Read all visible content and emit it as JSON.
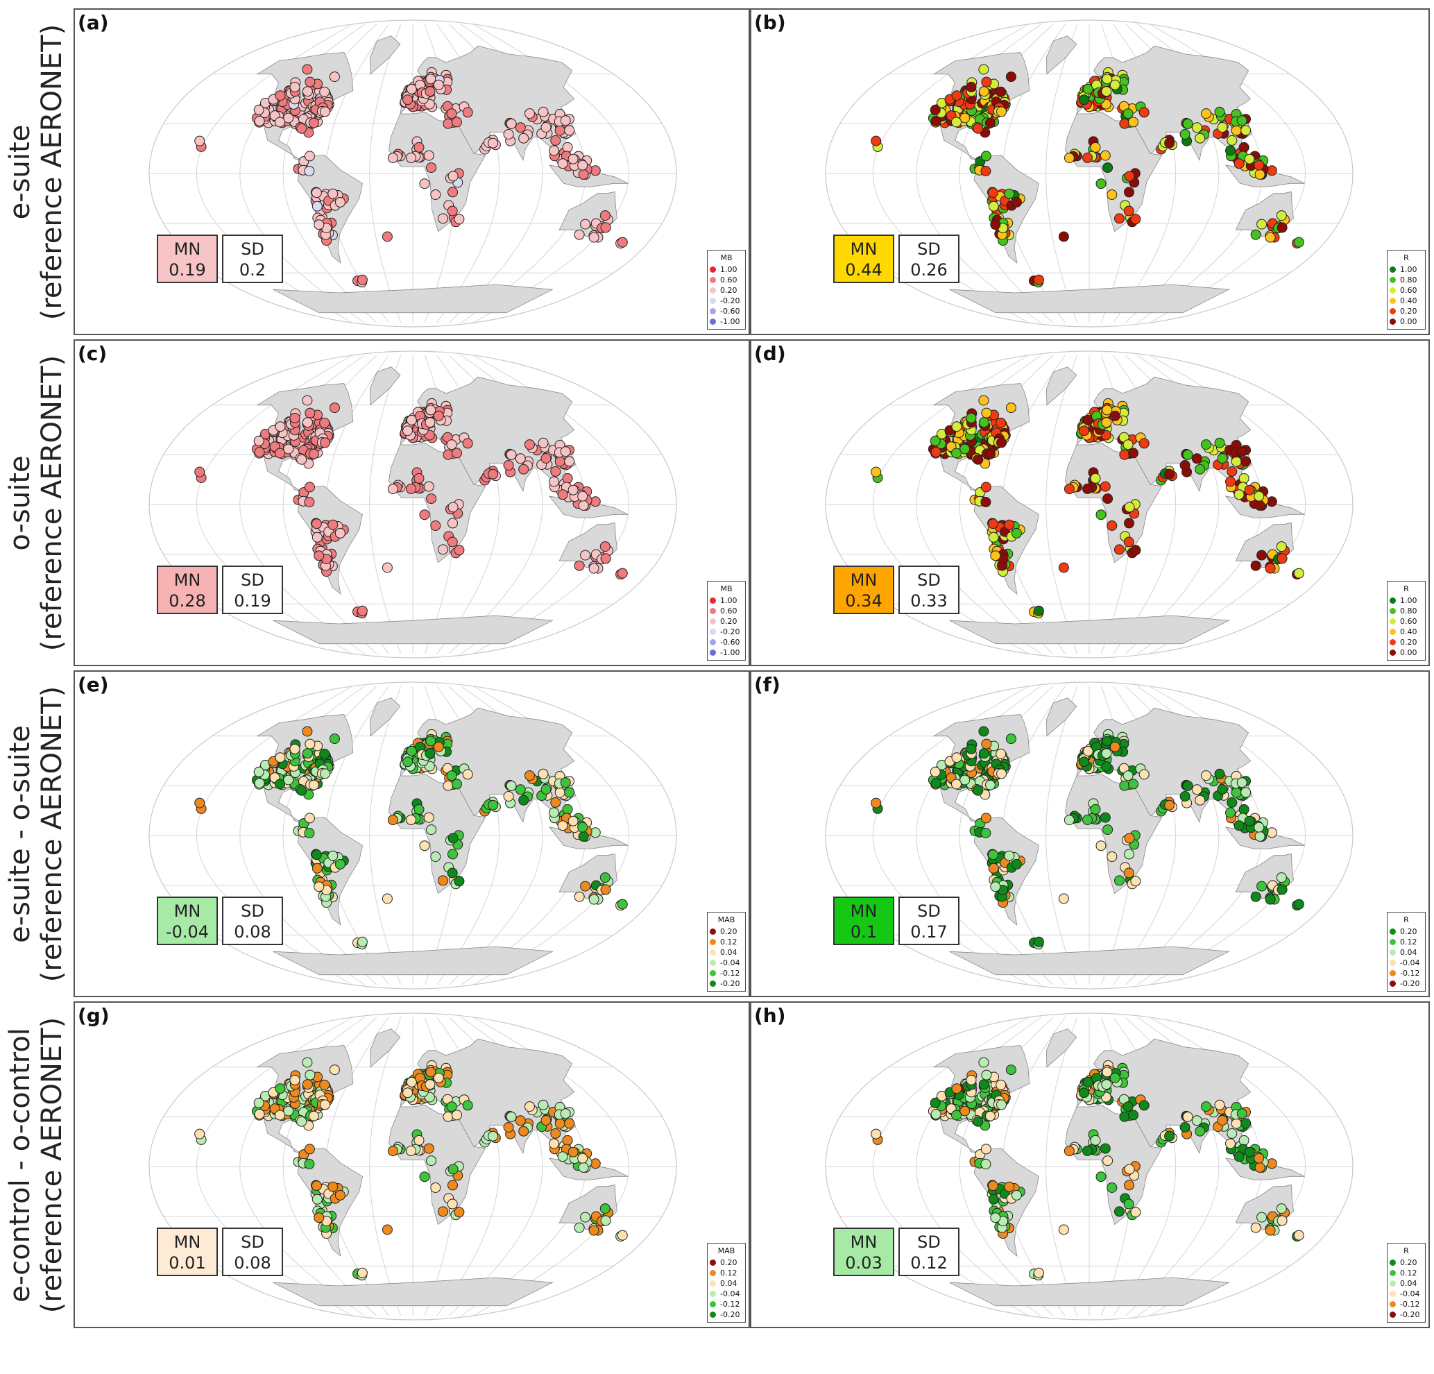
{
  "rows": [
    {
      "line1": "e-suite",
      "line2": "(reference AERONET)"
    },
    {
      "line1": "o-suite",
      "line2": "(reference AERONET)"
    },
    {
      "line1": "e-suite - o-suite",
      "line2": "(reference AERONET)"
    },
    {
      "line1": "e-control - o-control",
      "line2": "(reference AERONET)"
    }
  ],
  "panels": [
    {
      "label": "(a)",
      "mn_label": "MN",
      "mn_value": "0.19",
      "mn_color": "#f7c5c5",
      "sd_label": "SD",
      "sd_value": "0.2",
      "legend": "mb",
      "scheme": "mb",
      "bias": 0.3,
      "spread": 0.2
    },
    {
      "label": "(b)",
      "mn_label": "MN",
      "mn_value": "0.44",
      "mn_color": "#ffd800",
      "sd_label": "SD",
      "sd_value": "0.26",
      "legend": "r",
      "scheme": "r",
      "bias": 0.44,
      "spread": 0.3
    },
    {
      "label": "(c)",
      "mn_label": "MN",
      "mn_value": "0.28",
      "mn_color": "#f7b3b3",
      "sd_label": "SD",
      "sd_value": "0.19",
      "legend": "mb",
      "scheme": "mb",
      "bias": 0.38,
      "spread": 0.18
    },
    {
      "label": "(d)",
      "mn_label": "MN",
      "mn_value": "0.34",
      "mn_color": "#ffa500",
      "sd_label": "SD",
      "sd_value": "0.33",
      "legend": "r",
      "scheme": "r",
      "bias": 0.34,
      "spread": 0.36
    },
    {
      "label": "(e)",
      "mn_label": "MN",
      "mn_value": "-0.04",
      "mn_color": "#a6eaa6",
      "sd_label": "SD",
      "sd_value": "0.08",
      "legend": "mab",
      "scheme": "diff",
      "bias": -0.04,
      "spread": 0.1
    },
    {
      "label": "(f)",
      "mn_label": "MN",
      "mn_value": "0.1",
      "mn_color": "#14c814",
      "sd_label": "SD",
      "sd_value": "0.17",
      "legend": "rdiff",
      "scheme": "rdiff",
      "bias": 0.1,
      "spread": 0.15
    },
    {
      "label": "(g)",
      "mn_label": "MN",
      "mn_value": "0.01",
      "mn_color": "#fdebd5",
      "sd_label": "SD",
      "sd_value": "0.08",
      "legend": "mab",
      "scheme": "diff",
      "bias": 0.01,
      "spread": 0.09
    },
    {
      "label": "(h)",
      "mn_label": "MN",
      "mn_value": "0.03",
      "mn_color": "#a6eaa6",
      "sd_label": "SD",
      "sd_value": "0.12",
      "legend": "rdiff",
      "scheme": "rdiff",
      "bias": 0.03,
      "spread": 0.12
    }
  ],
  "legends": {
    "mb": {
      "title": "MB",
      "items": [
        {
          "color": "#e8262b",
          "label": "1.00"
        },
        {
          "color": "#ef7b7f",
          "label": "0.60"
        },
        {
          "color": "#f7c4c6",
          "label": "0.20"
        },
        {
          "color": "#d8daf2",
          "label": "-0.20"
        },
        {
          "color": "#a3a7e6",
          "label": "-0.60"
        },
        {
          "color": "#6a6fd8",
          "label": "-1.00"
        }
      ]
    },
    "r": {
      "title": "R",
      "items": [
        {
          "color": "#0b7a12",
          "label": "1.00"
        },
        {
          "color": "#44c21d",
          "label": "0.80"
        },
        {
          "color": "#d4ec3a",
          "label": "0.60"
        },
        {
          "color": "#ffc21a",
          "label": "0.40"
        },
        {
          "color": "#f03a12",
          "label": "0.20"
        },
        {
          "color": "#8b0d05",
          "label": "0.00"
        }
      ]
    },
    "mab": {
      "title": "MAB",
      "items": [
        {
          "color": "#8e0d08",
          "label": "0.20"
        },
        {
          "color": "#ee8a1d",
          "label": "0.12"
        },
        {
          "color": "#fde1b3",
          "label": "0.04"
        },
        {
          "color": "#b8ecb3",
          "label": "-0.04"
        },
        {
          "color": "#3ec43c",
          "label": "-0.12"
        },
        {
          "color": "#0e8a1a",
          "label": "-0.20"
        }
      ]
    },
    "rdiff": {
      "title": "R",
      "items": [
        {
          "color": "#0e8a1a",
          "label": "0.20"
        },
        {
          "color": "#3ec43c",
          "label": "0.12"
        },
        {
          "color": "#b8ecb3",
          "label": "0.04"
        },
        {
          "color": "#fde1b3",
          "label": "-0.04"
        },
        {
          "color": "#ee8a1d",
          "label": "-0.12"
        },
        {
          "color": "#8e0d08",
          "label": "-0.20"
        }
      ]
    }
  }
}
